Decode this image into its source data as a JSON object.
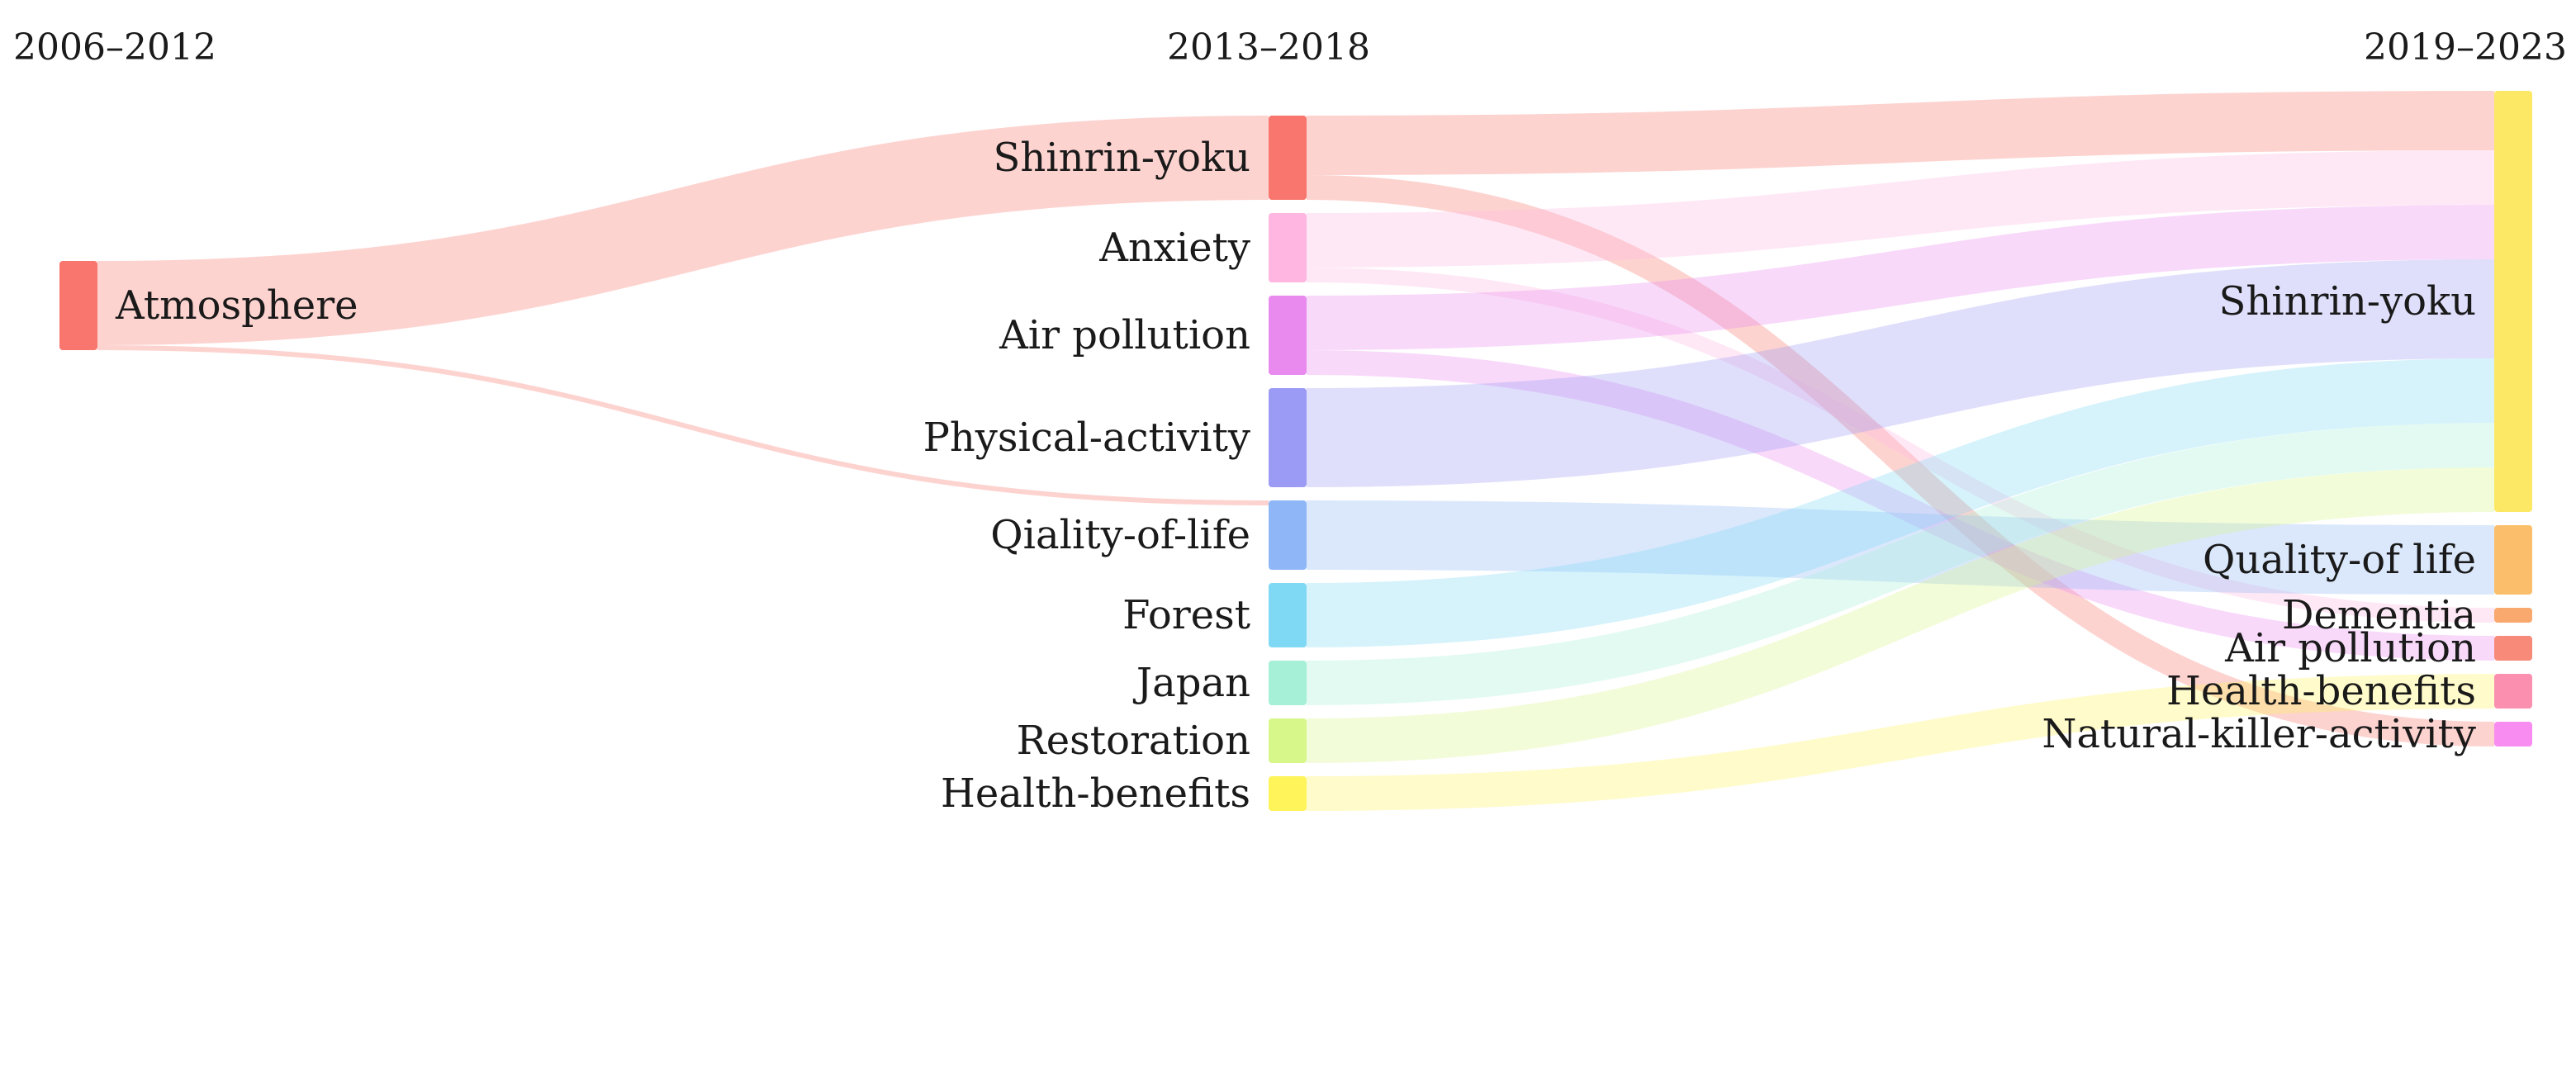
{
  "periods": [
    "2006–2012",
    "2013–2018",
    "2019–2023"
  ],
  "nodes": [
    {
      "id": "atm",
      "label": "Atmosphere",
      "period": 0,
      "color": "#f8766d"
    },
    {
      "id": "sy13",
      "label": "Shinrin-yoku",
      "period": 1,
      "color": "#f8766d"
    },
    {
      "id": "anx",
      "label": "Anxiety",
      "period": 1,
      "color": "#ffb6e1"
    },
    {
      "id": "ap13",
      "label": "Air pollution",
      "period": 1,
      "color": "#e98aef"
    },
    {
      "id": "pa",
      "label": "Physical-activity",
      "period": 1,
      "color": "#9b9bf5"
    },
    {
      "id": "qol13",
      "label": "Qiality-of-life",
      "period": 1,
      "color": "#8fb7f7"
    },
    {
      "id": "forest",
      "label": "Forest",
      "period": 1,
      "color": "#7fd9f5"
    },
    {
      "id": "japan",
      "label": "Japan",
      "period": 1,
      "color": "#a5f0d6"
    },
    {
      "id": "rest",
      "label": "Restoration",
      "period": 1,
      "color": "#d8f78a"
    },
    {
      "id": "hb13",
      "label": "Health-benefits",
      "period": 1,
      "color": "#fff45a"
    },
    {
      "id": "sy19",
      "label": "Shinrin-yoku",
      "period": 2,
      "color": "#fde866"
    },
    {
      "id": "qol19",
      "label": "Quality-of life",
      "period": 2,
      "color": "#fbbe6a"
    },
    {
      "id": "dem",
      "label": "Dementia",
      "period": 2,
      "color": "#f9a86e"
    },
    {
      "id": "ap19",
      "label": "Air pollution",
      "period": 2,
      "color": "#f88a7a"
    },
    {
      "id": "hb19",
      "label": "Health-benefits",
      "period": 2,
      "color": "#fb8faf"
    },
    {
      "id": "nka",
      "label": "Natural-killer-activity",
      "period": 2,
      "color": "#f98cf0"
    }
  ],
  "links": [
    {
      "source": "atm",
      "target": "sy13",
      "value": 17
    },
    {
      "source": "atm",
      "target": "qol13",
      "value": 1
    },
    {
      "source": "sy13",
      "target": "sy19",
      "value": 12
    },
    {
      "source": "sy13",
      "target": "nka",
      "value": 5
    },
    {
      "source": "anx",
      "target": "sy19",
      "value": 11
    },
    {
      "source": "anx",
      "target": "dem",
      "value": 3
    },
    {
      "source": "ap13",
      "target": "sy19",
      "value": 11
    },
    {
      "source": "ap13",
      "target": "ap19",
      "value": 5
    },
    {
      "source": "pa",
      "target": "sy19",
      "value": 20
    },
    {
      "source": "qol13",
      "target": "qol19",
      "value": 14
    },
    {
      "source": "forest",
      "target": "sy19",
      "value": 13
    },
    {
      "source": "japan",
      "target": "sy19",
      "value": 9
    },
    {
      "source": "rest",
      "target": "sy19",
      "value": 9
    },
    {
      "source": "hb13",
      "target": "hb19",
      "value": 7
    }
  ]
}
